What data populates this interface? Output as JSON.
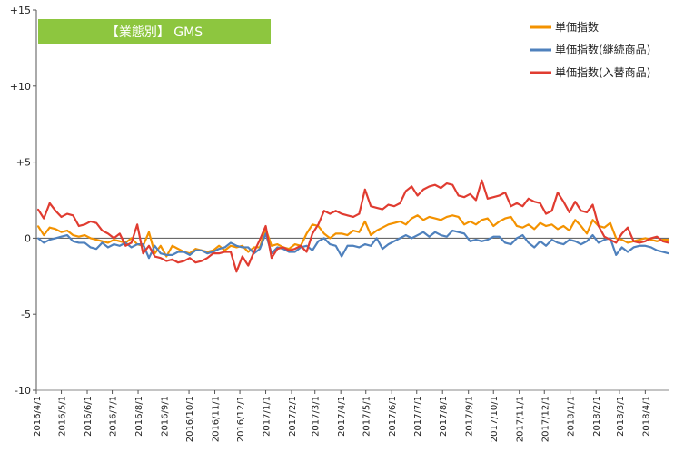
{
  "badge": {
    "label": "【業態別】 GMS",
    "color": "#8DC63F"
  },
  "chart_data": {
    "type": "line",
    "ylim": [
      -10,
      15
    ],
    "yticks": [
      -10,
      -5,
      0,
      5,
      10,
      15
    ],
    "ytick_labels": [
      "-10",
      "-5",
      "0",
      "+5",
      "+10",
      "+15"
    ],
    "xlim": [
      "2016-04-01",
      "2018-04-30"
    ],
    "xticks": [
      "2016-04-01",
      "2016-05-01",
      "2016-06-01",
      "2016-07-01",
      "2016-08-01",
      "2016-09-01",
      "2016-10-01",
      "2016-11-01",
      "2016-12-01",
      "2017-01-01",
      "2017-02-01",
      "2017-03-01",
      "2017-04-01",
      "2017-05-01",
      "2017-06-01",
      "2017-07-01",
      "2017-08-01",
      "2017-09-01",
      "2017-10-01",
      "2017-11-01",
      "2017-12-01",
      "2018-01-01",
      "2018-02-01",
      "2018-03-01",
      "2018-04-01"
    ],
    "xtick_labels": [
      "2016/4/1",
      "2016/5/1",
      "2016/6/1",
      "2016/7/1",
      "2016/8/1",
      "2016/9/1",
      "2016/10/1",
      "2016/11/1",
      "2016/12/1",
      "2017/1/1",
      "2017/2/1",
      "2017/3/1",
      "2017/4/1",
      "2017/5/1",
      "2017/6/1",
      "2017/7/1",
      "2017/8/1",
      "2017/9/1",
      "2017/10/1",
      "2017/11/1",
      "2017/12/1",
      "2018/1/1",
      "2018/2/1",
      "2018/3/1",
      "2018/4/1"
    ],
    "grid": false,
    "legend_position": "top-right",
    "series": [
      {
        "name": "単価指数",
        "color": "#F39200",
        "x": [
          "2016-04-03",
          "2016-04-10",
          "2016-04-17",
          "2016-04-24",
          "2016-05-01",
          "2016-05-08",
          "2016-05-15",
          "2016-05-22",
          "2016-05-29",
          "2016-06-05",
          "2016-06-12",
          "2016-06-19",
          "2016-06-26",
          "2016-07-03",
          "2016-07-10",
          "2016-07-17",
          "2016-07-24",
          "2016-07-31",
          "2016-08-07",
          "2016-08-14",
          "2016-08-21",
          "2016-08-28",
          "2016-09-04",
          "2016-09-11",
          "2016-09-18",
          "2016-09-25",
          "2016-10-02",
          "2016-10-09",
          "2016-10-16",
          "2016-10-23",
          "2016-10-30",
          "2016-11-06",
          "2016-11-13",
          "2016-11-20",
          "2016-11-27",
          "2016-12-04",
          "2016-12-11",
          "2016-12-18",
          "2016-12-25",
          "2017-01-01",
          "2017-01-08",
          "2017-01-15",
          "2017-01-22",
          "2017-01-29",
          "2017-02-05",
          "2017-02-12",
          "2017-02-19",
          "2017-02-26",
          "2017-03-05",
          "2017-03-12",
          "2017-03-19",
          "2017-03-26",
          "2017-04-02",
          "2017-04-09",
          "2017-04-16",
          "2017-04-23",
          "2017-04-30",
          "2017-05-07",
          "2017-05-14",
          "2017-05-21",
          "2017-05-28",
          "2017-06-04",
          "2017-06-11",
          "2017-06-18",
          "2017-06-25",
          "2017-07-02",
          "2017-07-09",
          "2017-07-16",
          "2017-07-23",
          "2017-07-30",
          "2017-08-06",
          "2017-08-13",
          "2017-08-20",
          "2017-08-27",
          "2017-09-03",
          "2017-09-10",
          "2017-09-17",
          "2017-09-24",
          "2017-10-01",
          "2017-10-08",
          "2017-10-15",
          "2017-10-22",
          "2017-10-29",
          "2017-11-05",
          "2017-11-12",
          "2017-11-19",
          "2017-11-26",
          "2017-12-03",
          "2017-12-10",
          "2017-12-17",
          "2017-12-24",
          "2017-12-31",
          "2018-01-07",
          "2018-01-14",
          "2018-01-21",
          "2018-01-28",
          "2018-02-04",
          "2018-02-11",
          "2018-02-18",
          "2018-02-25",
          "2018-03-04",
          "2018-03-11",
          "2018-03-18",
          "2018-03-25",
          "2018-04-01",
          "2018-04-08",
          "2018-04-15",
          "2018-04-22",
          "2018-04-29"
        ],
        "values": [
          0.8,
          0.2,
          0.7,
          0.6,
          0.4,
          0.5,
          0.2,
          0.1,
          0.2,
          0.0,
          -0.1,
          -0.2,
          -0.3,
          -0.1,
          -0.2,
          -0.3,
          0.0,
          -0.4,
          -0.5,
          0.4,
          -1.0,
          -0.5,
          -1.2,
          -0.5,
          -0.7,
          -0.9,
          -1.0,
          -0.7,
          -0.8,
          -0.9,
          -0.8,
          -0.5,
          -0.8,
          -0.5,
          -0.6,
          -0.5,
          -0.9,
          -0.6,
          -0.6,
          0.6,
          -0.5,
          -0.4,
          -0.6,
          -0.7,
          -0.4,
          -0.5,
          0.3,
          0.9,
          0.8,
          0.3,
          0.0,
          0.3,
          0.3,
          0.2,
          0.5,
          0.4,
          1.1,
          0.2,
          0.5,
          0.7,
          0.9,
          1.0,
          1.1,
          0.9,
          1.3,
          1.5,
          1.2,
          1.4,
          1.3,
          1.2,
          1.4,
          1.5,
          1.4,
          0.9,
          1.1,
          0.9,
          1.2,
          1.3,
          0.8,
          1.1,
          1.3,
          1.4,
          0.8,
          0.7,
          0.9,
          0.6,
          1.0,
          0.8,
          0.9,
          0.6,
          0.8,
          0.5,
          1.2,
          0.8,
          0.3,
          1.2,
          0.8,
          0.7,
          1.0,
          0.0,
          -0.1,
          -0.3,
          -0.2,
          -0.1,
          0.0,
          -0.1,
          -0.2,
          -0.1,
          -0.1
        ]
      },
      {
        "name": "単価指数(継続商品)",
        "color": "#4F81BD",
        "x": [
          "2016-04-03",
          "2016-04-10",
          "2016-04-17",
          "2016-04-24",
          "2016-05-01",
          "2016-05-08",
          "2016-05-15",
          "2016-05-22",
          "2016-05-29",
          "2016-06-05",
          "2016-06-12",
          "2016-06-19",
          "2016-06-26",
          "2016-07-03",
          "2016-07-10",
          "2016-07-17",
          "2016-07-24",
          "2016-07-31",
          "2016-08-07",
          "2016-08-14",
          "2016-08-21",
          "2016-08-28",
          "2016-09-04",
          "2016-09-11",
          "2016-09-18",
          "2016-09-25",
          "2016-10-02",
          "2016-10-09",
          "2016-10-16",
          "2016-10-23",
          "2016-10-30",
          "2016-11-06",
          "2016-11-13",
          "2016-11-20",
          "2016-11-27",
          "2016-12-04",
          "2016-12-11",
          "2016-12-18",
          "2016-12-25",
          "2017-01-01",
          "2017-01-08",
          "2017-01-15",
          "2017-01-22",
          "2017-01-29",
          "2017-02-05",
          "2017-02-12",
          "2017-02-19",
          "2017-02-26",
          "2017-03-05",
          "2017-03-12",
          "2017-03-19",
          "2017-03-26",
          "2017-04-02",
          "2017-04-09",
          "2017-04-16",
          "2017-04-23",
          "2017-04-30",
          "2017-05-07",
          "2017-05-14",
          "2017-05-21",
          "2017-05-28",
          "2017-06-04",
          "2017-06-11",
          "2017-06-18",
          "2017-06-25",
          "2017-07-02",
          "2017-07-09",
          "2017-07-16",
          "2017-07-23",
          "2017-07-30",
          "2017-08-06",
          "2017-08-13",
          "2017-08-20",
          "2017-08-27",
          "2017-09-03",
          "2017-09-10",
          "2017-09-17",
          "2017-09-24",
          "2017-10-01",
          "2017-10-08",
          "2017-10-15",
          "2017-10-22",
          "2017-10-29",
          "2017-11-05",
          "2017-11-12",
          "2017-11-19",
          "2017-11-26",
          "2017-12-03",
          "2017-12-10",
          "2017-12-17",
          "2017-12-24",
          "2017-12-31",
          "2018-01-07",
          "2018-01-14",
          "2018-01-21",
          "2018-01-28",
          "2018-02-04",
          "2018-02-11",
          "2018-02-18",
          "2018-02-25",
          "2018-03-04",
          "2018-03-11",
          "2018-03-18",
          "2018-03-25",
          "2018-04-01",
          "2018-04-08",
          "2018-04-15",
          "2018-04-22",
          "2018-04-29"
        ],
        "values": [
          0.0,
          -0.3,
          -0.1,
          0.0,
          0.1,
          0.2,
          -0.2,
          -0.3,
          -0.3,
          -0.6,
          -0.7,
          -0.3,
          -0.6,
          -0.4,
          -0.5,
          -0.3,
          -0.6,
          -0.4,
          -0.4,
          -1.3,
          -0.5,
          -1.0,
          -1.1,
          -1.1,
          -0.9,
          -0.9,
          -1.1,
          -0.8,
          -0.8,
          -1.0,
          -0.9,
          -0.7,
          -0.6,
          -0.3,
          -0.5,
          -0.6,
          -0.6,
          -1.0,
          -0.7,
          0.3,
          -1.0,
          -0.6,
          -0.7,
          -0.9,
          -0.9,
          -0.6,
          -0.5,
          -0.8,
          -0.2,
          0.0,
          -0.4,
          -0.5,
          -1.2,
          -0.5,
          -0.5,
          -0.6,
          -0.4,
          -0.5,
          0.0,
          -0.7,
          -0.4,
          -0.2,
          0.0,
          0.2,
          0.0,
          0.2,
          0.4,
          0.1,
          0.4,
          0.2,
          0.1,
          0.5,
          0.4,
          0.3,
          -0.2,
          -0.1,
          -0.2,
          -0.1,
          0.1,
          0.1,
          -0.3,
          -0.4,
          0.0,
          0.2,
          -0.3,
          -0.6,
          -0.2,
          -0.5,
          -0.1,
          -0.3,
          -0.4,
          -0.1,
          -0.2,
          -0.4,
          -0.2,
          0.2,
          -0.3,
          -0.1,
          0.0,
          -1.1,
          -0.6,
          -0.9,
          -0.6,
          -0.5,
          -0.5,
          -0.6,
          -0.8,
          -0.9,
          -1.0
        ]
      },
      {
        "name": "単価指数(入替商品)",
        "color": "#E03C31",
        "x": [
          "2016-04-03",
          "2016-04-10",
          "2016-04-17",
          "2016-04-24",
          "2016-05-01",
          "2016-05-08",
          "2016-05-15",
          "2016-05-22",
          "2016-05-29",
          "2016-06-05",
          "2016-06-12",
          "2016-06-19",
          "2016-06-26",
          "2016-07-03",
          "2016-07-10",
          "2016-07-17",
          "2016-07-24",
          "2016-07-31",
          "2016-08-07",
          "2016-08-14",
          "2016-08-21",
          "2016-08-28",
          "2016-09-04",
          "2016-09-11",
          "2016-09-18",
          "2016-09-25",
          "2016-10-02",
          "2016-10-09",
          "2016-10-16",
          "2016-10-23",
          "2016-10-30",
          "2016-11-06",
          "2016-11-13",
          "2016-11-20",
          "2016-11-27",
          "2016-12-04",
          "2016-12-11",
          "2016-12-18",
          "2016-12-25",
          "2017-01-01",
          "2017-01-08",
          "2017-01-15",
          "2017-01-22",
          "2017-01-29",
          "2017-02-05",
          "2017-02-12",
          "2017-02-19",
          "2017-02-26",
          "2017-03-05",
          "2017-03-12",
          "2017-03-19",
          "2017-03-26",
          "2017-04-02",
          "2017-04-09",
          "2017-04-16",
          "2017-04-23",
          "2017-04-30",
          "2017-05-07",
          "2017-05-14",
          "2017-05-21",
          "2017-05-28",
          "2017-06-04",
          "2017-06-11",
          "2017-06-18",
          "2017-06-25",
          "2017-07-02",
          "2017-07-09",
          "2017-07-16",
          "2017-07-23",
          "2017-07-30",
          "2017-08-06",
          "2017-08-13",
          "2017-08-20",
          "2017-08-27",
          "2017-09-03",
          "2017-09-10",
          "2017-09-17",
          "2017-09-24",
          "2017-10-01",
          "2017-10-08",
          "2017-10-15",
          "2017-10-22",
          "2017-10-29",
          "2017-11-05",
          "2017-11-12",
          "2017-11-19",
          "2017-11-26",
          "2017-12-03",
          "2017-12-10",
          "2017-12-17",
          "2017-12-24",
          "2017-12-31",
          "2018-01-07",
          "2018-01-14",
          "2018-01-21",
          "2018-01-28",
          "2018-02-04",
          "2018-02-11",
          "2018-02-18",
          "2018-02-25",
          "2018-03-04",
          "2018-03-11",
          "2018-03-18",
          "2018-03-25",
          "2018-04-01",
          "2018-04-08",
          "2018-04-15",
          "2018-04-22",
          "2018-04-29"
        ],
        "values": [
          1.9,
          1.3,
          2.3,
          1.8,
          1.4,
          1.6,
          1.5,
          0.8,
          0.9,
          1.1,
          1.0,
          0.5,
          0.3,
          0.0,
          0.3,
          -0.5,
          -0.3,
          0.9,
          -1.0,
          -0.5,
          -1.2,
          -1.3,
          -1.5,
          -1.4,
          -1.6,
          -1.5,
          -1.3,
          -1.6,
          -1.5,
          -1.3,
          -1.0,
          -1.0,
          -0.9,
          -0.9,
          -2.2,
          -1.2,
          -1.8,
          -0.9,
          -0.1,
          0.8,
          -1.3,
          -0.7,
          -0.6,
          -0.8,
          -0.7,
          -0.5,
          -0.9,
          0.3,
          0.9,
          1.8,
          1.6,
          1.8,
          1.6,
          1.5,
          1.4,
          1.6,
          3.2,
          2.1,
          2.0,
          1.9,
          2.2,
          2.1,
          2.3,
          3.1,
          3.4,
          2.8,
          3.2,
          3.4,
          3.5,
          3.3,
          3.6,
          3.5,
          2.8,
          2.7,
          2.9,
          2.5,
          3.8,
          2.6,
          2.7,
          2.8,
          3.0,
          2.1,
          2.3,
          2.1,
          2.6,
          2.4,
          2.3,
          1.6,
          1.8,
          3.0,
          2.4,
          1.7,
          2.4,
          1.8,
          1.7,
          2.2,
          0.8,
          0.1,
          -0.1,
          -0.3,
          0.3,
          0.7,
          -0.2,
          -0.3,
          -0.2,
          0.0,
          0.1,
          -0.2,
          -0.3
        ]
      }
    ]
  }
}
